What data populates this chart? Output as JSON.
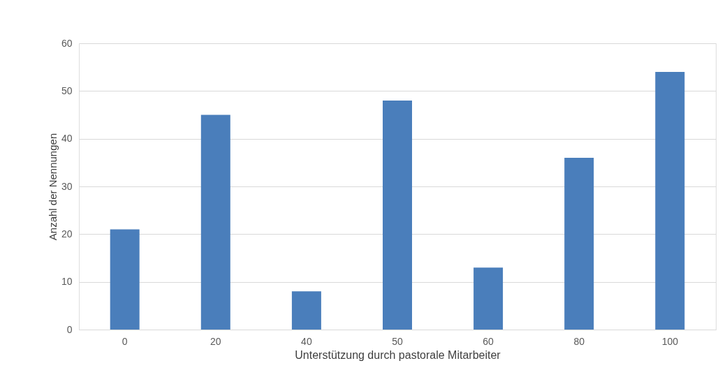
{
  "chart_data": {
    "type": "bar",
    "xlabel": "Unterstützung durch pastorale Mitarbeiter",
    "ylabel": "Anzahl der Nennungen",
    "categories": [
      "0",
      "20",
      "40",
      "50",
      "60",
      "80",
      "100"
    ],
    "values": [
      21,
      45,
      8,
      48,
      13,
      36,
      54
    ],
    "color": "#4a7ebb",
    "ylim": [
      0,
      60
    ],
    "yticks": [
      0,
      10,
      20,
      30,
      40,
      50,
      60
    ],
    "grid": "y"
  }
}
